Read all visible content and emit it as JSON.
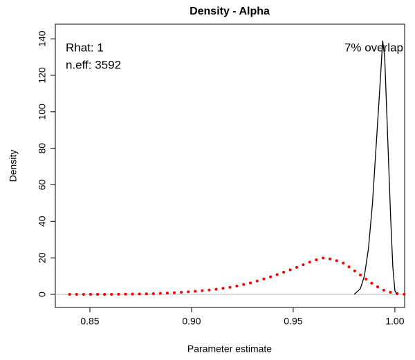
{
  "chart_data": {
    "type": "line",
    "title": "Density - Alpha",
    "x_label": "Parameter estimate",
    "y_label": "Density",
    "xlim": [
      0.833,
      1.0048
    ],
    "ylim": [
      -7.2,
      148
    ],
    "xticks": [
      0.85,
      {
        "value": 0.9,
        "label": "0.90"
      },
      0.95,
      {
        "value": 1.0,
        "label": "1.00"
      }
    ],
    "yticks": [
      0,
      20,
      40,
      60,
      80,
      100,
      120,
      140
    ],
    "hline": 0,
    "hline_color": "#b0b0b0",
    "series": [
      {
        "color": "#ff0000",
        "style": "dotted",
        "x": [
          0.84,
          0.86,
          0.88,
          0.89,
          0.9,
          0.91,
          0.92,
          0.93,
          0.94,
          0.95,
          0.96,
          0.965,
          0.97,
          0.975,
          0.98,
          0.985,
          0.99,
          0.995,
          1.0,
          1.005
        ],
        "values": [
          0,
          0,
          0.3,
          0.8,
          1.5,
          2.5,
          4,
          6.5,
          10,
          14,
          18.5,
          20,
          19,
          17,
          13,
          9,
          5,
          2,
          0.5,
          0
        ]
      },
      {
        "color": "#000000",
        "style": "solid",
        "x": [
          0.98,
          0.983,
          0.985,
          0.987,
          0.989,
          0.991,
          0.993,
          0.994,
          0.995,
          0.996,
          0.997,
          0.998,
          0.999,
          1.0,
          1.001
        ],
        "values": [
          0,
          3,
          10,
          25,
          50,
          85,
          120,
          139,
          130,
          100,
          70,
          40,
          15,
          2,
          0
        ]
      }
    ],
    "annotations": [
      {
        "text": "Rhat: 1",
        "color": "#ff0000",
        "corner": "top-left"
      },
      {
        "text": "n.eff: 3592",
        "color": "#ff0000",
        "corner": "top-left"
      },
      {
        "text": "7% overlap",
        "color": "#ff0000",
        "corner": "top-right"
      }
    ]
  }
}
